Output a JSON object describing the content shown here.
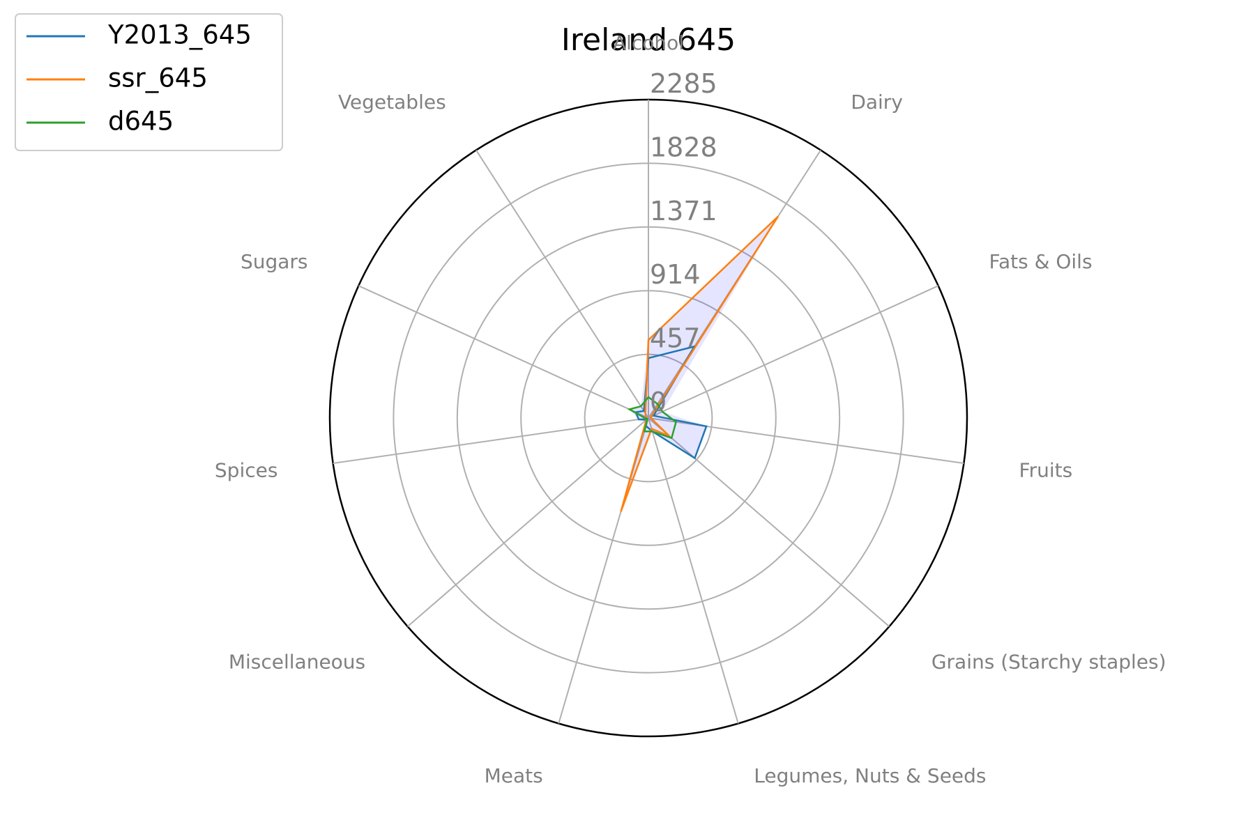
{
  "chart_data": {
    "type": "radar",
    "title": "Ireland 645",
    "categories": [
      "Alcohol",
      "Dairy",
      "Fats & Oils",
      "Fruits",
      "Grains (Starchy staples)",
      "Legumes, Nuts & Seeds",
      "Meats",
      "Miscellaneous",
      "Spices",
      "Sugars",
      "Vegetables"
    ],
    "rticks": [
      "0",
      "457",
      "914",
      "1371",
      "1828",
      "2285"
    ],
    "rlim": [
      0,
      2285
    ],
    "grid": true,
    "legend_position": "upper-left",
    "series": [
      {
        "name": "Y2013_645",
        "color": "#1f77b4",
        "values": [
          430,
          610,
          40,
          420,
          440,
          100,
          60,
          20,
          70,
          100,
          60
        ]
      },
      {
        "name": "ssr_645",
        "color": "#ff7f0e",
        "values": [
          560,
          1720,
          20,
          20,
          200,
          80,
          700,
          20,
          10,
          20,
          40
        ]
      },
      {
        "name": "d645",
        "color": "#2ca02c",
        "values": [
          150,
          120,
          110,
          200,
          220,
          100,
          100,
          10,
          20,
          150,
          100
        ]
      }
    ],
    "fill": {
      "color": "#0000ff",
      "opacity": 0.1
    }
  }
}
